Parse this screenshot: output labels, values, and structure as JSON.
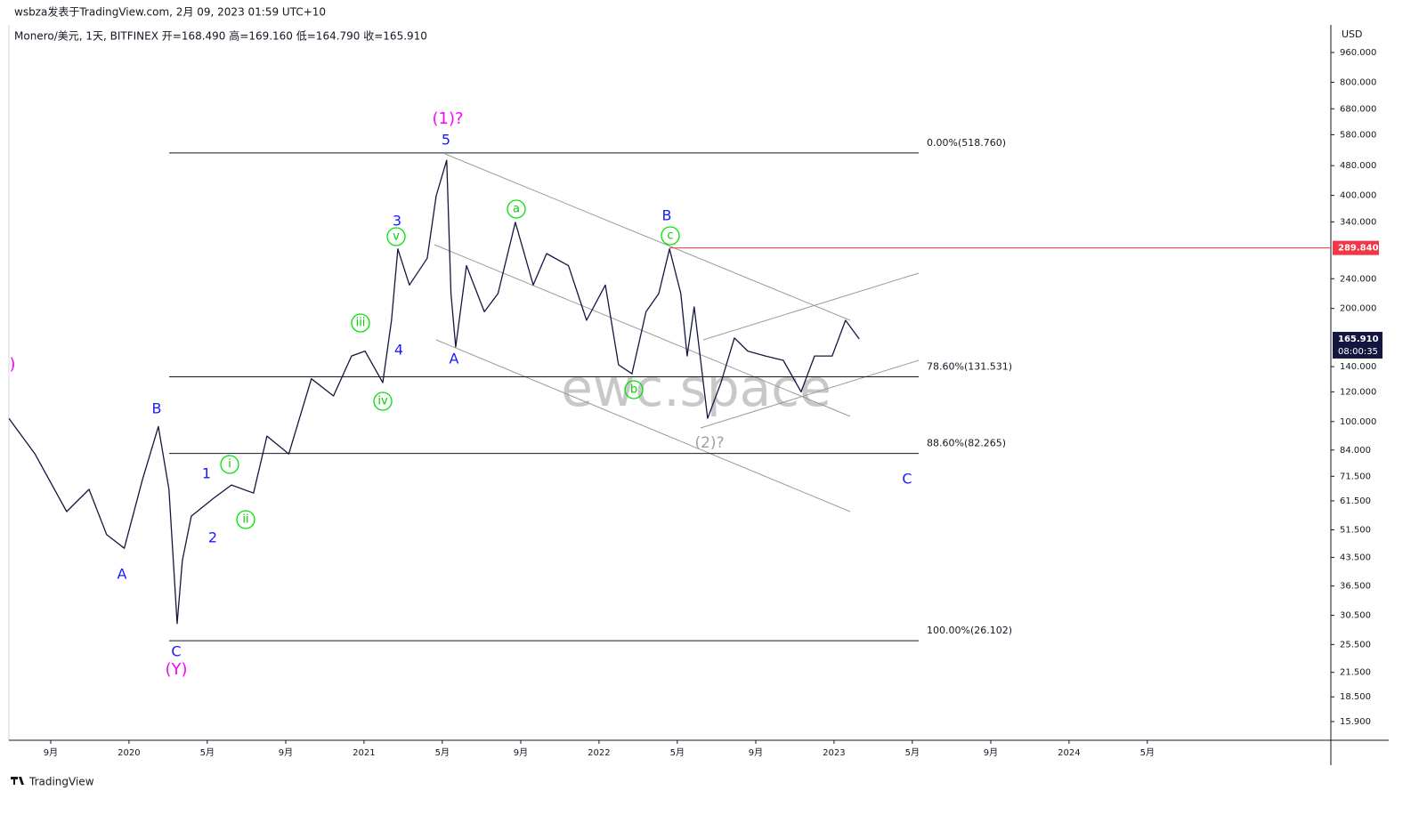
{
  "header": {
    "byline": "wsbza发表于TradingView.com, 2月 09, 2023 01:59 UTC+10",
    "symbol": "Monero/美元, 1天, BITFINEX  开=168.490  高=169.160  低=164.790  收=165.910",
    "currency": "USD",
    "last_price": "165.910",
    "countdown": "08:00:35",
    "watermark": "ewc.space",
    "logo": "TradingView"
  },
  "chart_data": {
    "type": "line",
    "log_scale": true,
    "color": "#131740",
    "x": [
      2019.489,
      2019.6,
      2019.735,
      2019.83,
      2019.905,
      2019.98,
      2020.057,
      2020.125,
      2020.17,
      2020.205,
      2020.227,
      2020.265,
      2020.36,
      2020.436,
      2020.53,
      2020.587,
      2020.68,
      2020.776,
      2020.87,
      2020.947,
      2021.004,
      2021.08,
      2021.117,
      2021.144,
      2021.193,
      2021.269,
      2021.307,
      2021.352,
      2021.37,
      2021.39,
      2021.436,
      2021.512,
      2021.57,
      2021.644,
      2021.72,
      2021.777,
      2021.87,
      2021.947,
      2022.027,
      2022.083,
      2022.14,
      2022.2,
      2022.254,
      2022.3,
      2022.348,
      2022.375,
      2022.405,
      2022.462,
      2022.519,
      2022.576,
      2022.633,
      2022.708,
      2022.784,
      2022.86,
      2022.917,
      2022.992,
      2023.049,
      2023.107
    ],
    "values": [
      102,
      82,
      57.6,
      66,
      50,
      46,
      70,
      97,
      66,
      29,
      42.6,
      56,
      62.5,
      67.8,
      64.5,
      91.5,
      82,
      130,
      117,
      149.5,
      154,
      127,
      186,
      288,
      231,
      272,
      399,
      496,
      219,
      158,
      260,
      196,
      219,
      339,
      231,
      280,
      260,
      186,
      231,
      141.6,
      134,
      196,
      219,
      288,
      219,
      149.5,
      202,
      102,
      127,
      167,
      154,
      149.5,
      145.5,
      120,
      149.5,
      149.5,
      186,
      165.91
    ],
    "xlim": [
      2019.489,
      2025.114
    ],
    "ylim": [
      14.18,
      1137
    ],
    "xticks": [
      {
        "value": 2019.667,
        "label": "9月"
      },
      2020,
      {
        "value": 2020.333,
        "label": "5月"
      },
      {
        "value": 2020.667,
        "label": "9月"
      },
      2021,
      {
        "value": 2021.333,
        "label": "5月"
      },
      {
        "value": 2021.667,
        "label": "9月"
      },
      2022,
      {
        "value": 2022.333,
        "label": "5月"
      },
      {
        "value": 2022.667,
        "label": "9月"
      },
      2023,
      {
        "value": 2023.333,
        "label": "5月"
      },
      {
        "value": 2023.667,
        "label": "9月"
      },
      2024,
      {
        "value": 2024.333,
        "label": "5月"
      }
    ],
    "yticks": [
      {
        "value": 960,
        "label": "960.000"
      },
      {
        "value": 800,
        "label": "800.000"
      },
      {
        "value": 680,
        "label": "680.000"
      },
      {
        "value": 580,
        "label": "580.000"
      },
      {
        "value": 480,
        "label": "480.000"
      },
      {
        "value": 400,
        "label": "400.000"
      },
      {
        "value": 340,
        "label": "340.000"
      },
      {
        "value": 240,
        "label": "240.000"
      },
      {
        "value": 200,
        "label": "200.000"
      },
      {
        "value": 140,
        "label": "140.000"
      },
      {
        "value": 120,
        "label": "120.000"
      },
      {
        "value": 100,
        "label": "100.000"
      },
      {
        "value": 84,
        "label": "84.000"
      },
      {
        "value": 71.5,
        "label": "71.500"
      },
      {
        "value": 61.5,
        "label": "61.500"
      },
      {
        "value": 51.5,
        "label": "51.500"
      },
      {
        "value": 43.5,
        "label": "43.500"
      },
      {
        "value": 36.5,
        "label": "36.500"
      },
      {
        "value": 30.5,
        "label": "30.500"
      },
      {
        "value": 25.5,
        "label": "25.500"
      },
      {
        "value": 21.5,
        "label": "21.500"
      },
      {
        "value": 18.5,
        "label": "18.500"
      },
      {
        "value": 15.9,
        "label": "15.900"
      }
    ],
    "fib_levels": [
      {
        "value": 518.76,
        "label": "0.00%(518.760)"
      },
      {
        "value": 131.531,
        "label": "78.60%(131.531)"
      },
      {
        "value": 82.265,
        "label": "88.60%(82.265)"
      },
      {
        "value": 26.102,
        "label": "100.00%(26.102)"
      }
    ],
    "red_level": {
      "value": 289.84,
      "label": "289.840",
      "color": "#f23645"
    },
    "wave_labels": [
      "(1)?",
      "5",
      "3",
      "v",
      "iii",
      "4",
      "iv",
      "A",
      "a",
      "B",
      "c",
      "b",
      "(2)?",
      "C",
      "B",
      "A",
      "1",
      "i",
      "ii",
      "2",
      "C",
      "(Y)",
      ")"
    ]
  }
}
